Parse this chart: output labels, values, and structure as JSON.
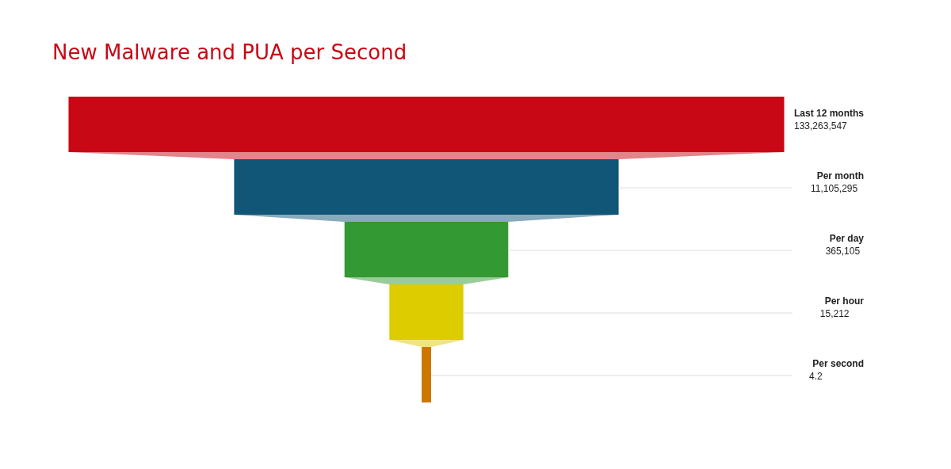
{
  "chart_data": {
    "type": "other",
    "title": "New Malware and PUA per Second",
    "categories": [
      "Last 12 months",
      "Per month",
      "Per day",
      "Per hour",
      "Per second"
    ],
    "values": [
      133263547,
      11105295,
      365105,
      15212,
      4.2
    ],
    "colors": [
      "#c80815",
      "#115577",
      "#339933",
      "#ddcc00",
      "#cc7700"
    ],
    "value_labels": [
      "133,263,547",
      "11,105,295",
      "365,105",
      "15,212",
      "4.2"
    ]
  }
}
